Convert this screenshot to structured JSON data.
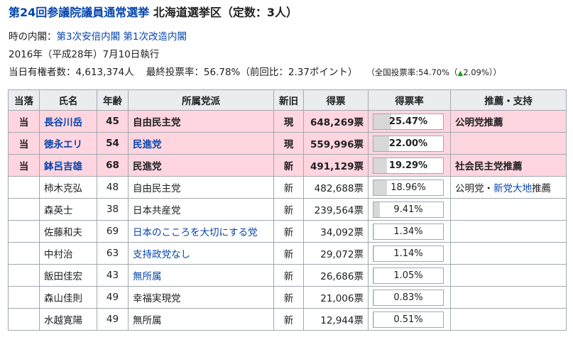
{
  "heading": {
    "election_link": "第24回参議院議員通常選挙",
    "district": "北海道選挙区（定数：3人）"
  },
  "info": {
    "cabinet_label": "時の内閣：",
    "cabinet1": "第3次安倍内閣",
    "cabinet2": "第1次改造内閣",
    "date": "2016年（平成28年）7月10日執行",
    "voters_label": "当日有権者数：4,613,374人",
    "turnout": "最終投票率：56.78%（前回比：2.37ポイント）",
    "national_prefix": "（全国投票率:54.70%（",
    "national_arrow": "▲",
    "national_suffix": "2.09%））"
  },
  "table": {
    "headers": [
      "当落",
      "氏名",
      "年齢",
      "所属党派",
      "新旧",
      "得票",
      "得票率",
      "推薦・支持"
    ],
    "rows": [
      {
        "win": "当",
        "name": "長谷川岳",
        "name_link": true,
        "age": "45",
        "party": "自由民主党",
        "party_link": false,
        "status": "現",
        "votes": "648,269票",
        "rate": "25.47%",
        "rate_value": 25.47,
        "support": "公明党推薦",
        "support_link": "",
        "support_suffix": ""
      },
      {
        "win": "当",
        "name": "徳永エリ",
        "name_link": true,
        "age": "54",
        "party": "民進党",
        "party_link": true,
        "status": "現",
        "votes": "559,996票",
        "rate": "22.00%",
        "rate_value": 22.0,
        "support": "",
        "support_link": "",
        "support_suffix": ""
      },
      {
        "win": "当",
        "name": "鉢呂吉雄",
        "name_link": true,
        "age": "68",
        "party": "民進党",
        "party_link": false,
        "status": "新",
        "votes": "491,129票",
        "rate": "19.29%",
        "rate_value": 19.29,
        "support": "社会民主党推薦",
        "support_link": "",
        "support_suffix": ""
      },
      {
        "win": "",
        "name": "柿木克弘",
        "name_link": false,
        "age": "48",
        "party": "自由民主党",
        "party_link": false,
        "status": "新",
        "votes": "482,688票",
        "rate": "18.96%",
        "rate_value": 18.96,
        "support": "公明党・",
        "support_link": "新党大地",
        "support_suffix": "推薦"
      },
      {
        "win": "",
        "name": "森英士",
        "name_link": false,
        "age": "38",
        "party": "日本共産党",
        "party_link": false,
        "status": "新",
        "votes": "239,564票",
        "rate": "9.41%",
        "rate_value": 9.41,
        "support": "",
        "support_link": "",
        "support_suffix": ""
      },
      {
        "win": "",
        "name": "佐藤和夫",
        "name_link": false,
        "age": "69",
        "party": "日本のこころを大切にする党",
        "party_link": true,
        "status": "新",
        "votes": "34,092票",
        "rate": "1.34%",
        "rate_value": 1.34,
        "support": "",
        "support_link": "",
        "support_suffix": ""
      },
      {
        "win": "",
        "name": "中村治",
        "name_link": false,
        "age": "63",
        "party": "支持政党なし",
        "party_link": true,
        "status": "新",
        "votes": "29,072票",
        "rate": "1.14%",
        "rate_value": 1.14,
        "support": "",
        "support_link": "",
        "support_suffix": ""
      },
      {
        "win": "",
        "name": "飯田佳宏",
        "name_link": false,
        "age": "43",
        "party": "無所属",
        "party_link": true,
        "status": "新",
        "votes": "26,686票",
        "rate": "1.05%",
        "rate_value": 1.05,
        "support": "",
        "support_link": "",
        "support_suffix": ""
      },
      {
        "win": "",
        "name": "森山佳則",
        "name_link": false,
        "age": "49",
        "party": "幸福実現党",
        "party_link": false,
        "status": "新",
        "votes": "21,006票",
        "rate": "0.83%",
        "rate_value": 0.83,
        "support": "",
        "support_link": "",
        "support_suffix": ""
      },
      {
        "win": "",
        "name": "水越寛陽",
        "name_link": false,
        "age": "49",
        "party": "無所属",
        "party_link": false,
        "status": "新",
        "votes": "12,944票",
        "rate": "0.51%",
        "rate_value": 0.51,
        "support": "",
        "support_link": "",
        "support_suffix": ""
      }
    ]
  }
}
